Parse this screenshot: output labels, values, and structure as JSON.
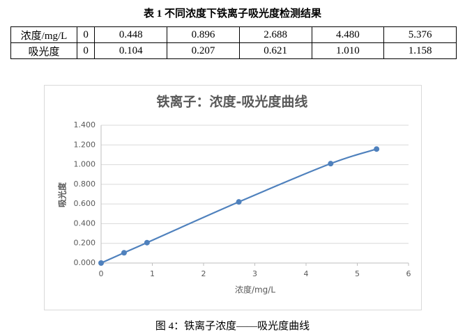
{
  "table": {
    "caption": "表 1  不同浓度下铁离子吸光度检测结果",
    "rows": [
      [
        "浓度/mg/L",
        "0",
        "0.448",
        "0.896",
        "2.688",
        "4.480",
        "5.376"
      ],
      [
        "吸光度",
        "0",
        "0.104",
        "0.207",
        "0.621",
        "1.010",
        "1.158"
      ]
    ]
  },
  "chart_data": {
    "type": "line",
    "title": "铁离子：浓度-吸光度曲线",
    "x_label": "浓度/mg/L",
    "y_label": "吸光度",
    "x": [
      0,
      0.448,
      0.896,
      2.688,
      4.48,
      5.376
    ],
    "series": [
      {
        "name": "吸光度",
        "color": "#4f81bd",
        "values": [
          0,
          0.104,
          0.207,
          0.621,
          1.01,
          1.158
        ]
      }
    ],
    "xlim": [
      0,
      6
    ],
    "xticks": [
      0,
      1,
      2,
      3,
      4,
      5,
      6
    ],
    "ylim": [
      0,
      1.4
    ],
    "yticks": [
      {
        "value": 0,
        "label": "0.000"
      },
      {
        "value": 0.2,
        "label": "0.200"
      },
      {
        "value": 0.4,
        "label": "0.400"
      },
      {
        "value": 0.6,
        "label": "0.600"
      },
      {
        "value": 0.8,
        "label": "0.800"
      },
      {
        "value": 1,
        "label": "1.000"
      },
      {
        "value": 1.2,
        "label": "1.200"
      },
      {
        "value": 1.4,
        "label": "1.400"
      }
    ],
    "grid": true
  },
  "caption": "图 4：铁离子浓度——吸光度曲线"
}
